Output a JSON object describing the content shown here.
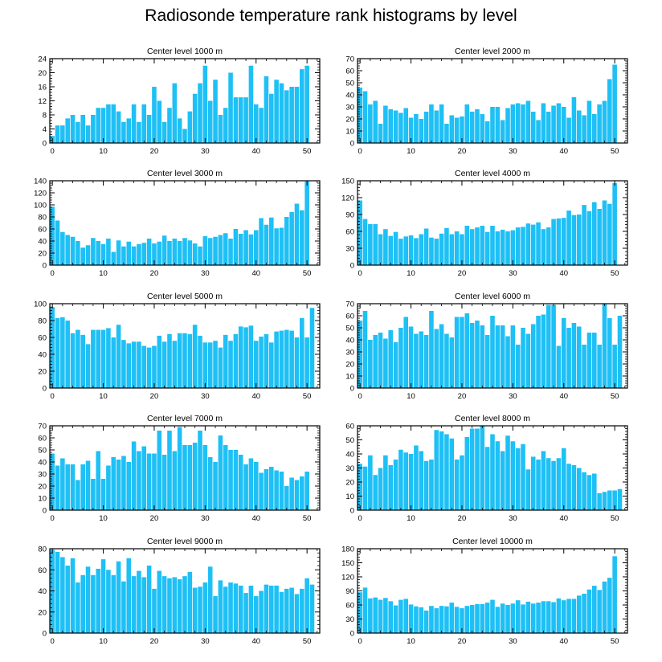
{
  "figure_title": "Radiosonde temperature rank histograms by level",
  "bar_color": "#1ec0f5",
  "chart_data": [
    {
      "type": "bar",
      "title": "Center level 1000 m",
      "ylim": [
        0,
        24
      ],
      "yticks": [
        0,
        4,
        8,
        12,
        16,
        20,
        24
      ],
      "xlim": [
        -0.5,
        52.5
      ],
      "xticks": [
        0,
        10,
        20,
        30,
        40,
        50
      ],
      "values": [
        2,
        5,
        5,
        7,
        8,
        6,
        8,
        5,
        8,
        10,
        10,
        11,
        11,
        9,
        6,
        7,
        11,
        6,
        11,
        8,
        16,
        12,
        6,
        10,
        17,
        7,
        4,
        9,
        14,
        17,
        22,
        12,
        18,
        8,
        10,
        20,
        13,
        13,
        13,
        22,
        11,
        10,
        19,
        14,
        18,
        17,
        15,
        16,
        16,
        21,
        22,
        0
      ]
    },
    {
      "type": "bar",
      "title": "Center level 2000 m",
      "ylim": [
        0,
        70
      ],
      "yticks": [
        0,
        10,
        20,
        30,
        40,
        50,
        60,
        70
      ],
      "xlim": [
        -0.5,
        52.5
      ],
      "xticks": [
        0,
        10,
        20,
        30,
        40,
        50
      ],
      "values": [
        46,
        43,
        32,
        35,
        16,
        31,
        28,
        27,
        25,
        29,
        21,
        24,
        20,
        26,
        32,
        27,
        32,
        16,
        23,
        21,
        22,
        32,
        26,
        28,
        24,
        18,
        30,
        30,
        19,
        29,
        32,
        33,
        32,
        35,
        26,
        19,
        33,
        26,
        31,
        33,
        30,
        21,
        38,
        27,
        23,
        35,
        24,
        32,
        35,
        53,
        65,
        0
      ]
    },
    {
      "type": "bar",
      "title": "Center level 3000 m",
      "ylim": [
        0,
        140
      ],
      "yticks": [
        0,
        20,
        40,
        60,
        80,
        100,
        120,
        140
      ],
      "xlim": [
        -0.5,
        52.5
      ],
      "xticks": [
        0,
        10,
        20,
        30,
        40,
        50
      ],
      "values": [
        97,
        74,
        55,
        50,
        47,
        40,
        29,
        33,
        45,
        40,
        35,
        44,
        22,
        41,
        31,
        39,
        31,
        35,
        37,
        44,
        36,
        39,
        49,
        40,
        44,
        40,
        45,
        41,
        36,
        31,
        48,
        45,
        47,
        50,
        53,
        44,
        60,
        52,
        58,
        51,
        58,
        78,
        67,
        79,
        61,
        62,
        80,
        88,
        102,
        91,
        139,
        0
      ]
    },
    {
      "type": "bar",
      "title": "Center level 4000 m",
      "ylim": [
        0,
        150
      ],
      "yticks": [
        0,
        30,
        60,
        90,
        120,
        150
      ],
      "xlim": [
        -0.5,
        52.5
      ],
      "xticks": [
        0,
        10,
        20,
        30,
        40,
        50
      ],
      "values": [
        115,
        82,
        73,
        73,
        55,
        64,
        52,
        59,
        47,
        51,
        53,
        48,
        55,
        65,
        49,
        47,
        56,
        66,
        55,
        60,
        55,
        70,
        64,
        67,
        70,
        59,
        70,
        60,
        63,
        60,
        62,
        67,
        68,
        74,
        72,
        76,
        64,
        67,
        82,
        83,
        84,
        97,
        89,
        90,
        107,
        96,
        112,
        100,
        115,
        109,
        146,
        0
      ]
    },
    {
      "type": "bar",
      "title": "Center level 5000 m",
      "ylim": [
        0,
        100
      ],
      "yticks": [
        0,
        20,
        40,
        60,
        80,
        100
      ],
      "xlim": [
        -0.5,
        52.5
      ],
      "xticks": [
        0,
        10,
        20,
        30,
        40,
        50
      ],
      "values": [
        96,
        83,
        84,
        80,
        65,
        69,
        63,
        52,
        69,
        69,
        69,
        71,
        60,
        75,
        57,
        53,
        55,
        55,
        50,
        48,
        50,
        62,
        55,
        64,
        56,
        65,
        65,
        64,
        75,
        62,
        54,
        54,
        56,
        48,
        63,
        56,
        64,
        73,
        72,
        74,
        56,
        61,
        64,
        54,
        67,
        68,
        69,
        68,
        60,
        83,
        60,
        95
      ]
    },
    {
      "type": "bar",
      "title": "Center level 6000 m",
      "ylim": [
        0,
        70
      ],
      "yticks": [
        0,
        10,
        20,
        30,
        40,
        50,
        60,
        70
      ],
      "xlim": [
        -0.5,
        52.5
      ],
      "xticks": [
        0,
        10,
        20,
        30,
        40,
        50
      ],
      "values": [
        56,
        64,
        40,
        44,
        46,
        41,
        48,
        38,
        50,
        59,
        51,
        45,
        47,
        44,
        64,
        49,
        53,
        45,
        42,
        59,
        59,
        62,
        54,
        56,
        52,
        44,
        60,
        52,
        52,
        43,
        52,
        36,
        50,
        45,
        53,
        60,
        61,
        69,
        69,
        35,
        58,
        50,
        54,
        51,
        36,
        46,
        46,
        36,
        70,
        58,
        36,
        60
      ]
    },
    {
      "type": "bar",
      "title": "Center level 7000 m",
      "ylim": [
        0,
        70
      ],
      "yticks": [
        0,
        10,
        20,
        30,
        40,
        50,
        60,
        70
      ],
      "xlim": [
        -0.5,
        52.5
      ],
      "xticks": [
        0,
        10,
        20,
        30,
        40,
        50
      ],
      "values": [
        47,
        37,
        43,
        38,
        38,
        25,
        38,
        41,
        26,
        49,
        26,
        37,
        44,
        42,
        45,
        40,
        57,
        49,
        53,
        47,
        47,
        66,
        46,
        66,
        49,
        69,
        54,
        54,
        56,
        66,
        54,
        44,
        40,
        62,
        54,
        50,
        50,
        46,
        38,
        43,
        40,
        31,
        34,
        36,
        33,
        32,
        20,
        27,
        25,
        28,
        32,
        0
      ]
    },
    {
      "type": "bar",
      "title": "Center level 8000 m",
      "ylim": [
        0,
        60
      ],
      "yticks": [
        0,
        10,
        20,
        30,
        40,
        50,
        60
      ],
      "xlim": [
        -0.5,
        52.5
      ],
      "xticks": [
        0,
        10,
        20,
        30,
        40,
        50
      ],
      "values": [
        33,
        31,
        39,
        25,
        30,
        39,
        32,
        36,
        43,
        41,
        40,
        46,
        42,
        35,
        36,
        57,
        56,
        54,
        51,
        36,
        39,
        52,
        58,
        58,
        60,
        45,
        54,
        49,
        42,
        53,
        49,
        44,
        47,
        29,
        38,
        36,
        42,
        37,
        35,
        37,
        44,
        33,
        32,
        30,
        27,
        25,
        26,
        12,
        13,
        14,
        14,
        15
      ]
    },
    {
      "type": "bar",
      "title": "Center level 9000 m",
      "ylim": [
        0,
        80
      ],
      "yticks": [
        0,
        20,
        40,
        60,
        80
      ],
      "xlim": [
        -0.5,
        52.5
      ],
      "xticks": [
        0,
        10,
        20,
        30,
        40,
        50
      ],
      "values": [
        79,
        77,
        72,
        64,
        71,
        48,
        55,
        63,
        55,
        61,
        70,
        60,
        55,
        68,
        49,
        71,
        54,
        59,
        53,
        64,
        42,
        59,
        54,
        52,
        53,
        51,
        54,
        58,
        43,
        44,
        48,
        63,
        35,
        50,
        44,
        48,
        47,
        45,
        38,
        45,
        35,
        40,
        46,
        45,
        45,
        39,
        42,
        43,
        37,
        42,
        52,
        46
      ]
    },
    {
      "type": "bar",
      "title": "Center level 10000 m",
      "ylim": [
        0,
        180
      ],
      "yticks": [
        0,
        30,
        60,
        90,
        120,
        150,
        180
      ],
      "xlim": [
        -0.5,
        52.5
      ],
      "xticks": [
        0,
        10,
        20,
        30,
        40,
        50
      ],
      "values": [
        87,
        97,
        74,
        76,
        71,
        75,
        68,
        59,
        71,
        73,
        61,
        57,
        55,
        48,
        58,
        53,
        58,
        57,
        65,
        56,
        53,
        58,
        60,
        62,
        62,
        65,
        71,
        56,
        63,
        60,
        63,
        70,
        61,
        67,
        63,
        65,
        68,
        68,
        66,
        74,
        70,
        73,
        73,
        80,
        84,
        93,
        101,
        92,
        110,
        118,
        164,
        0
      ]
    }
  ]
}
